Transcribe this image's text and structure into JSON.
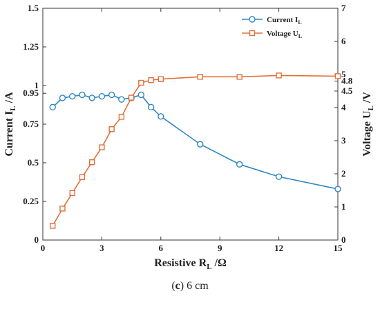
{
  "chart_data": {
    "type": "line",
    "xlabel": "Resistive R",
    "xlabel_sub": "L",
    "xlabel_unit": "/Ω",
    "x_ticks": [
      "0",
      "3",
      "6",
      "9",
      "12",
      "15"
    ],
    "xlim": [
      0,
      15
    ],
    "y_left": {
      "label": "Current I",
      "label_sub": "L",
      "label_unit": "/A",
      "ylim": [
        0,
        1.5
      ],
      "ticks": [
        "0",
        "0.25",
        "0.5",
        "0.75",
        "0.95",
        "1",
        "1.25",
        "1.5"
      ]
    },
    "y_right": {
      "label": "Voltage U",
      "label_sub": "L",
      "label_unit": "/V",
      "ylim": [
        0,
        7
      ],
      "ticks": [
        "0",
        "1",
        "2",
        "3",
        "4",
        "4.5",
        "4.8",
        "5",
        "6",
        "7"
      ]
    },
    "series": [
      {
        "name": "Current I",
        "name_sub": "L",
        "axis": "left",
        "color": "#2e86c1",
        "marker": "circle",
        "x": [
          0.5,
          1,
          1.5,
          2,
          2.5,
          3,
          3.5,
          4,
          4.5,
          5,
          5.5,
          6,
          8,
          10,
          12,
          15
        ],
        "y": [
          0.86,
          0.92,
          0.93,
          0.94,
          0.92,
          0.93,
          0.94,
          0.91,
          0.92,
          0.94,
          0.86,
          0.8,
          0.62,
          0.49,
          0.41,
          0.33
        ]
      },
      {
        "name": "Voltage U",
        "name_sub": "L",
        "axis": "right",
        "color": "#e0703a",
        "marker": "square",
        "x": [
          0.5,
          1,
          1.5,
          2,
          2.5,
          3,
          3.5,
          4,
          4.5,
          5,
          5.5,
          6,
          8,
          10,
          12,
          15
        ],
        "y": [
          0.43,
          0.95,
          1.42,
          1.9,
          2.35,
          2.8,
          3.35,
          3.72,
          4.3,
          4.75,
          4.83,
          4.86,
          4.93,
          4.93,
          4.97,
          4.95
        ]
      }
    ],
    "legend_position": "top-right",
    "grid": false
  },
  "caption": {
    "label": "c",
    "text": "6 cm"
  }
}
